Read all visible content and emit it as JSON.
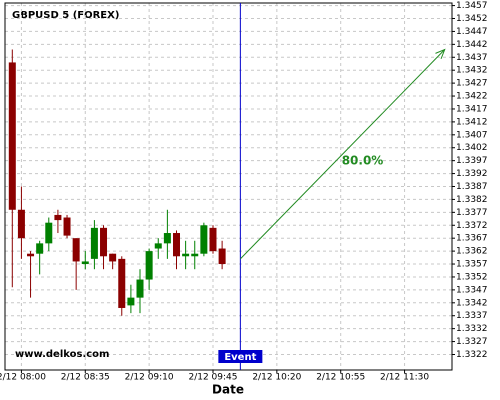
{
  "chart_data": {
    "type": "candlestick",
    "title": "GBPUSD 5 (FOREX)",
    "x_label": "Date",
    "x": [
      "2/12 07:55",
      "2/12 08:00",
      "2/12 08:05",
      "2/12 08:10",
      "2/12 08:15",
      "2/12 08:20",
      "2/12 08:25",
      "2/12 08:30",
      "2/12 08:35",
      "2/12 08:40",
      "2/12 08:45",
      "2/12 08:50",
      "2/12 08:55",
      "2/12 09:00",
      "2/12 09:05",
      "2/12 09:10",
      "2/12 09:15",
      "2/12 09:20",
      "2/12 09:25",
      "2/12 09:30",
      "2/12 09:35",
      "2/12 09:40",
      "2/12 09:45",
      "2/12 09:50"
    ],
    "open": [
      1.3435,
      1.3378,
      1.3361,
      1.3361,
      1.3365,
      1.3376,
      1.3375,
      1.3367,
      1.3357,
      1.3359,
      1.3371,
      1.3361,
      1.3359,
      1.3341,
      1.3344,
      1.3351,
      1.3363,
      1.3365,
      1.3369,
      1.336,
      1.336,
      1.3361,
      1.3371,
      1.3363
    ],
    "high": [
      1.344,
      1.3387,
      1.3362,
      1.3366,
      1.3375,
      1.3378,
      1.3376,
      1.3367,
      1.3362,
      1.3374,
      1.3372,
      1.3361,
      1.336,
      1.3349,
      1.3355,
      1.3363,
      1.3367,
      1.3378,
      1.337,
      1.3366,
      1.3366,
      1.3373,
      1.3372,
      1.3366
    ],
    "low": [
      1.3348,
      1.3359,
      1.3344,
      1.3353,
      1.3362,
      1.3369,
      1.3367,
      1.3347,
      1.3355,
      1.3355,
      1.3355,
      1.3355,
      1.3337,
      1.3338,
      1.3338,
      1.3347,
      1.3359,
      1.3359,
      1.3355,
      1.3355,
      1.3355,
      1.336,
      1.3361,
      1.3355
    ],
    "close": [
      1.3378,
      1.3367,
      1.336,
      1.3365,
      1.3373,
      1.3374,
      1.3368,
      1.3358,
      1.3358,
      1.3371,
      1.336,
      1.3358,
      1.334,
      1.3344,
      1.3351,
      1.3362,
      1.3365,
      1.3369,
      1.336,
      1.3361,
      1.3361,
      1.3372,
      1.3362,
      1.3357
    ],
    "up_color": "#008000",
    "down_color": "#8b0000",
    "xlim": [
      "2/12 07:51",
      "2/12 11:56"
    ],
    "xticks": [
      "2/12 08:00",
      "2/12 08:35",
      "2/12 09:10",
      "2/12 09:45",
      "2/12 10:20",
      "2/12 10:55",
      "2/12 11:30"
    ],
    "ylim": [
      1.3316,
      1.3458
    ],
    "yticks": [
      1.3457,
      1.3452,
      1.3447,
      1.3442,
      1.3437,
      1.3432,
      1.3427,
      1.3422,
      1.3417,
      1.3412,
      1.3407,
      1.3402,
      1.3397,
      1.3392,
      1.3387,
      1.3382,
      1.3377,
      1.3372,
      1.3367,
      1.3362,
      1.3357,
      1.3352,
      1.3347,
      1.3342,
      1.3337,
      1.3332,
      1.3327,
      1.3322
    ],
    "grid": true,
    "watermark": "www.delkos.com",
    "event": {
      "label": "Event",
      "x": "2/12 10:00",
      "color": "#0000cc"
    },
    "arrow": {
      "label": "80.0%",
      "color": "#228b22",
      "x": [
        "2/12 10:00",
        "2/12 11:52"
      ],
      "y": [
        1.3359,
        1.344
      ]
    }
  }
}
